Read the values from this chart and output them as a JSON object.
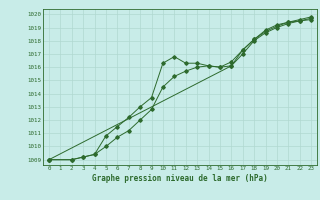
{
  "x": [
    0,
    1,
    2,
    3,
    4,
    5,
    6,
    7,
    8,
    9,
    10,
    11,
    12,
    13,
    14,
    15,
    16,
    17,
    18,
    19,
    20,
    21,
    22,
    23
  ],
  "line1": [
    1009.0,
    null,
    1009.0,
    1009.2,
    1009.4,
    1010.8,
    1011.5,
    1012.2,
    1013.0,
    1013.7,
    1016.3,
    1016.8,
    1016.3,
    1016.3,
    1016.1,
    1016.0,
    1016.1,
    1017.0,
    1018.0,
    1018.6,
    1019.0,
    1019.3,
    1019.5,
    1019.6
  ],
  "line2": [
    1009.0,
    null,
    1009.0,
    1009.2,
    1009.4,
    1010.0,
    1010.7,
    1011.2,
    1012.0,
    1012.8,
    1014.5,
    1015.3,
    1015.7,
    1016.0,
    1016.1,
    1016.0,
    1016.4,
    1017.3,
    1018.1,
    1018.7,
    1019.1,
    1019.4,
    1019.5,
    1019.7
  ],
  "line3": [
    1009.0,
    null,
    null,
    null,
    null,
    null,
    null,
    null,
    null,
    null,
    null,
    null,
    null,
    null,
    null,
    null,
    1016.1,
    1017.3,
    1018.1,
    1018.8,
    1019.2,
    1019.4,
    1019.6,
    1019.8
  ],
  "line_color": "#2d6a2d",
  "bg_color": "#c8ece8",
  "grid_color": "#b0d8d0",
  "title": "Graphe pression niveau de la mer (hPa)",
  "ylabel_vals": [
    1009,
    1010,
    1011,
    1012,
    1013,
    1014,
    1015,
    1016,
    1017,
    1018,
    1019,
    1020
  ],
  "ylim": [
    1008.6,
    1020.4
  ],
  "xlim": [
    -0.5,
    23.5
  ]
}
